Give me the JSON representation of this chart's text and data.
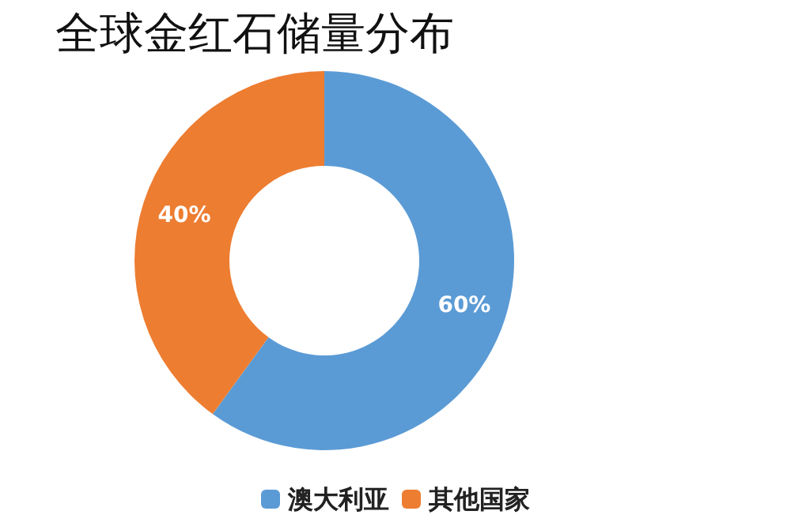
{
  "chart_data": {
    "type": "donut",
    "title": "全球金红石储量分布",
    "categories": [
      "澳大利亚",
      "其他国家"
    ],
    "values": [
      60,
      40
    ],
    "colors": [
      "#5b9bd5",
      "#ed7d31"
    ],
    "value_labels": [
      "60%",
      "40%"
    ],
    "legend": "bottom"
  }
}
